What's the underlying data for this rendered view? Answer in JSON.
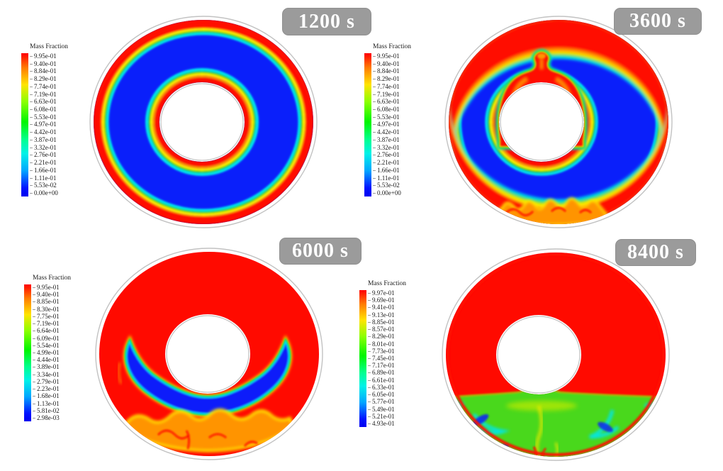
{
  "figure": {
    "background": "#ffffff",
    "layout": "2x2 grid of annular mass-fraction contour plots at four simulation times"
  },
  "colors": {
    "contour_red": "#ff0a00",
    "contour_orange": "#ff9400",
    "contour_yellow": "#fff300",
    "contour_green": "#16d100",
    "contour_cyan": "#00e6ee",
    "contour_blue": "#0a1ffa",
    "pool_green": "#49d81f",
    "pool_yellow": "#c3ea00",
    "badge_bg": "#9b9b9b",
    "badge_border": "#8f8f8f",
    "badge_text": "#ffffff",
    "casing": "#c2c2c2",
    "legend_text": "#1a1a1a",
    "page_bg": "#ffffff"
  },
  "chart_data": [
    {
      "type": "heatmap",
      "subtype": "annular-contour",
      "title": "1200 s",
      "time_s": 1200,
      "legend_title": "Mass Fraction",
      "colorbar_min": 0.0,
      "colorbar_max": 0.995,
      "colorbar_ticks": [
        "9.95e-01",
        "9.40e-01",
        "8.84e-01",
        "8.29e-01",
        "7.74e-01",
        "7.19e-01",
        "6.63e-01",
        "6.08e-01",
        "5.53e-01",
        "4.97e-01",
        "4.42e-01",
        "3.87e-01",
        "3.32e-01",
        "2.76e-01",
        "2.21e-01",
        "1.66e-01",
        "1.11e-01",
        "5.53e-02",
        "0.00e+00"
      ],
      "description": "Annulus bulk at mass fraction ~0 (blue); thin high-value (red) layer along outer wall, thicker at top, and a thin red ring around the inner cylinder with rainbow transition bands."
    },
    {
      "type": "heatmap",
      "subtype": "annular-contour",
      "title": "3600 s",
      "time_s": 3600,
      "legend_title": "Mass Fraction",
      "colorbar_min": 0.0,
      "colorbar_max": 0.995,
      "colorbar_ticks": [
        "9.95e-01",
        "9.40e-01",
        "8.84e-01",
        "8.29e-01",
        "7.74e-01",
        "7.19e-01",
        "6.63e-01",
        "6.08e-01",
        "5.53e-01",
        "4.97e-01",
        "4.42e-01",
        "3.87e-01",
        "3.32e-01",
        "2.76e-01",
        "2.21e-01",
        "1.66e-01",
        "1.11e-01",
        "5.53e-02",
        "0.00e+00"
      ],
      "description": "Thick red stratified cap across the top of the annulus, red mushroom-shaped plume rising above the inner cylinder with orange internal swirls, and a red bottom band with orange/yellow finger instabilities; bulk still blue."
    },
    {
      "type": "heatmap",
      "subtype": "annular-contour",
      "title": "6000 s",
      "time_s": 6000,
      "legend_title": "Mass Fraction",
      "colorbar_min": 0.00298,
      "colorbar_max": 0.995,
      "colorbar_ticks": [
        "9.95e-01",
        "9.40e-01",
        "8.85e-01",
        "8.30e-01",
        "7.75e-01",
        "7.19e-01",
        "6.64e-01",
        "6.09e-01",
        "5.54e-01",
        "4.99e-01",
        "4.44e-01",
        "3.89e-01",
        "3.34e-01",
        "2.79e-01",
        "2.23e-01",
        "1.68e-01",
        "1.13e-01",
        "5.81e-02",
        "2.98e-03"
      ],
      "description": "Domain mostly red (high mass fraction); residual blue crescent with two upturned horns beneath the inner cylinder, underlain by a wavy orange/yellow mixing band and red at the bottom wall."
    },
    {
      "type": "heatmap",
      "subtype": "annular-contour",
      "title": "8400 s",
      "time_s": 8400,
      "legend_title": "Mass Fraction",
      "colorbar_min": 0.493,
      "colorbar_max": 0.997,
      "colorbar_ticks": [
        "9.97e-01",
        "9.69e-01",
        "9.41e-01",
        "9.13e-01",
        "8.85e-01",
        "8.57e-01",
        "8.29e-01",
        "8.01e-01",
        "7.73e-01",
        "7.45e-01",
        "7.17e-01",
        "6.89e-01",
        "6.61e-01",
        "6.33e-01",
        "6.05e-01",
        "5.77e-01",
        "5.49e-01",
        "5.21e-01",
        "4.93e-01"
      ],
      "description": "Nearly uniform red with a stratified yellow-green pool (~0.7) settled at the bottom containing cyan and blue swirls; thin red film along the bottom wall; flat interface with a slight central peak."
    }
  ]
}
